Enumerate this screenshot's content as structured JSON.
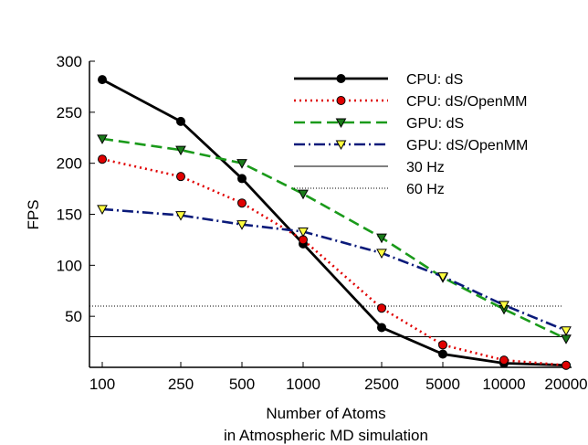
{
  "chart_data": {
    "type": "line",
    "title": "",
    "xlabel": "Number of Atoms",
    "xlabel2": "in Atmospheric MD simulation",
    "ylabel": "FPS",
    "x_categories": [
      "100",
      "250",
      "500",
      "1000",
      "2500",
      "5000",
      "10000",
      "20000"
    ],
    "y_ticks": [
      50,
      100,
      150,
      200,
      250,
      300
    ],
    "ylim": [
      0,
      300
    ],
    "grid": false,
    "legend_position": "top-right",
    "series": [
      {
        "name": "CPU: dS",
        "color": "#000000",
        "dash": "solid",
        "marker": "circle",
        "marker_fill": "#000000",
        "values": [
          282,
          241,
          185,
          121,
          39,
          13,
          4,
          2
        ]
      },
      {
        "name": "CPU: dS/OpenMM",
        "color": "#e00000",
        "dash": "dot",
        "marker": "circle",
        "marker_fill": "#e00000",
        "values": [
          204,
          187,
          161,
          125,
          58,
          22,
          7,
          2
        ]
      },
      {
        "name": "GPU: dS",
        "color": "#1a9a1a",
        "dash": "dash",
        "marker": "triangle-down",
        "marker_fill": "#1a7a1a",
        "values": [
          224,
          213,
          200,
          170,
          127,
          88,
          57,
          28
        ]
      },
      {
        "name": "GPU: dS/OpenMM",
        "color": "#0a1a7a",
        "dash": "dashdot",
        "marker": "triangle-down",
        "marker_fill": "#ffff40",
        "values": [
          155,
          149,
          140,
          133,
          112,
          89,
          61,
          36
        ]
      }
    ],
    "reference_lines": [
      {
        "name": "30 Hz",
        "value": 30,
        "style": "solid",
        "color": "#000000"
      },
      {
        "name": "60 Hz",
        "value": 60,
        "style": "dotted",
        "color": "#000000"
      }
    ]
  }
}
